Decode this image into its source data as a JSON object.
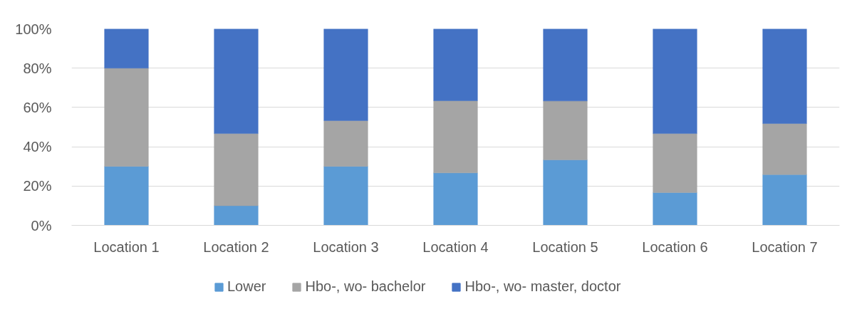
{
  "chart_data": {
    "type": "bar",
    "stacked": true,
    "categories": [
      "Location 1",
      "Location 2",
      "Location 3",
      "Location 4",
      "Location 5",
      "Location 6",
      "Location 7"
    ],
    "series": [
      {
        "name": "Lower",
        "color": "#5b9bd5",
        "values": [
          30,
          10,
          30,
          26.7,
          33.3,
          16.7,
          25.8
        ]
      },
      {
        "name": "Hbo-, wo- bachelor",
        "color": "#a5a5a5",
        "values": [
          50,
          36.7,
          23.3,
          36.7,
          30,
          30,
          26
        ]
      },
      {
        "name": "Hbo-, wo- master, doctor",
        "color": "#4472c4",
        "values": [
          20,
          53.3,
          46.7,
          36.7,
          36.7,
          53.3,
          48.2
        ]
      }
    ],
    "ylim": [
      0,
      100
    ],
    "yticks": [
      {
        "value": 0,
        "label": "0%"
      },
      {
        "value": 20,
        "label": "20%"
      },
      {
        "value": 40,
        "label": "40%"
      },
      {
        "value": 60,
        "label": "60%"
      },
      {
        "value": 80,
        "label": "80%"
      },
      {
        "value": 100,
        "label": "100%"
      }
    ],
    "grid": "y",
    "legend": "bottom"
  }
}
